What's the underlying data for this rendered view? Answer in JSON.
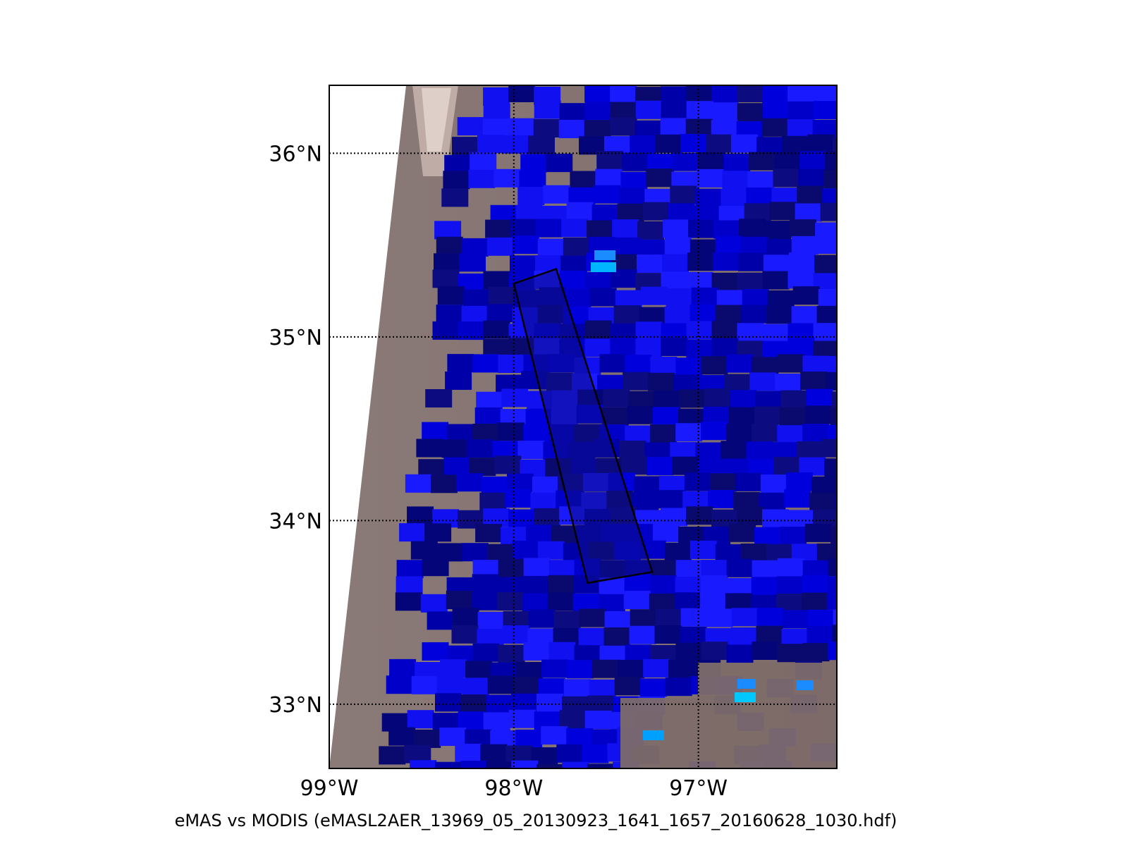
{
  "caption": "eMAS vs MODIS (eMASL2AER_13969_05_20130923_1641_1657_20160628_1030.hdf)",
  "map": {
    "lon_range": [
      -99.0,
      -96.25
    ],
    "lat_range": [
      32.65,
      36.37
    ],
    "lon_ticks": [
      {
        "value": -99,
        "label": "99°W"
      },
      {
        "value": -98,
        "label": "98°W"
      },
      {
        "value": -97,
        "label": "97°W"
      }
    ],
    "lat_ticks": [
      {
        "value": 36,
        "label": "36°N"
      },
      {
        "value": 35,
        "label": "35°N"
      },
      {
        "value": 34,
        "label": "34°N"
      },
      {
        "value": 33,
        "label": "33°N"
      }
    ],
    "gridline_style": "dotted",
    "flight_track_corners": [
      {
        "lon": -98.0,
        "lat": 35.29
      },
      {
        "lon": -97.77,
        "lat": 35.37
      },
      {
        "lon": -97.25,
        "lat": 33.72
      },
      {
        "lon": -97.6,
        "lat": 33.66
      }
    ],
    "colors": {
      "background_land": "#8c7774",
      "blue_dark": "#0a0a6e",
      "blue_mid": "#0000c8",
      "blue_bright": "#1a1aff",
      "cyan": "#00b4ff",
      "grid": "#000000",
      "track": "#000000"
    }
  }
}
